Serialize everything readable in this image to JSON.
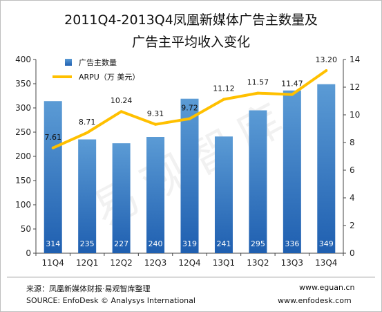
{
  "title_line1": "2011Q4-2013Q4凤凰新媒体广告主数量及",
  "title_line2": "广告主平均收入变化",
  "watermark": "易观智库",
  "footer": {
    "source_cn": "来源：凤凰新媒体财报·易观智库整理",
    "source_en": "SOURCE: EnfoDesk © Analysys International",
    "url1": "www.eguan.cn",
    "url2": "www.enfodesk.com"
  },
  "colors": {
    "bar_top": "#5b9bd5",
    "bar_bottom": "#1f5fb0",
    "line": "#ffc000"
  },
  "chart_data": {
    "type": "bar",
    "categories": [
      "11Q4",
      "12Q1",
      "12Q2",
      "12Q3",
      "12Q4",
      "13Q1",
      "13Q2",
      "13Q3",
      "13Q4"
    ],
    "series": [
      {
        "name": "广告主数量",
        "type": "bar",
        "axis": "left",
        "values": [
          314,
          235,
          227,
          240,
          319,
          241,
          295,
          336,
          349
        ]
      },
      {
        "name": "ARPU（万 美元）",
        "type": "line",
        "axis": "right",
        "values": [
          7.61,
          8.71,
          10.24,
          9.31,
          9.72,
          11.12,
          11.57,
          11.47,
          13.2
        ]
      }
    ],
    "y_left": {
      "min": 0,
      "max": 400,
      "ticks": [
        0,
        50,
        100,
        150,
        200,
        250,
        300,
        350,
        400
      ]
    },
    "y_right": {
      "min": 0,
      "max": 14,
      "ticks": [
        0,
        2,
        4,
        6,
        8,
        10,
        12,
        14
      ]
    },
    "line_labels": [
      "7.61",
      "8.71",
      "10.24",
      "9.31",
      "9.72",
      "11.12",
      "11.57",
      "11.47",
      "13.20"
    ],
    "legend_position": "top-left"
  }
}
